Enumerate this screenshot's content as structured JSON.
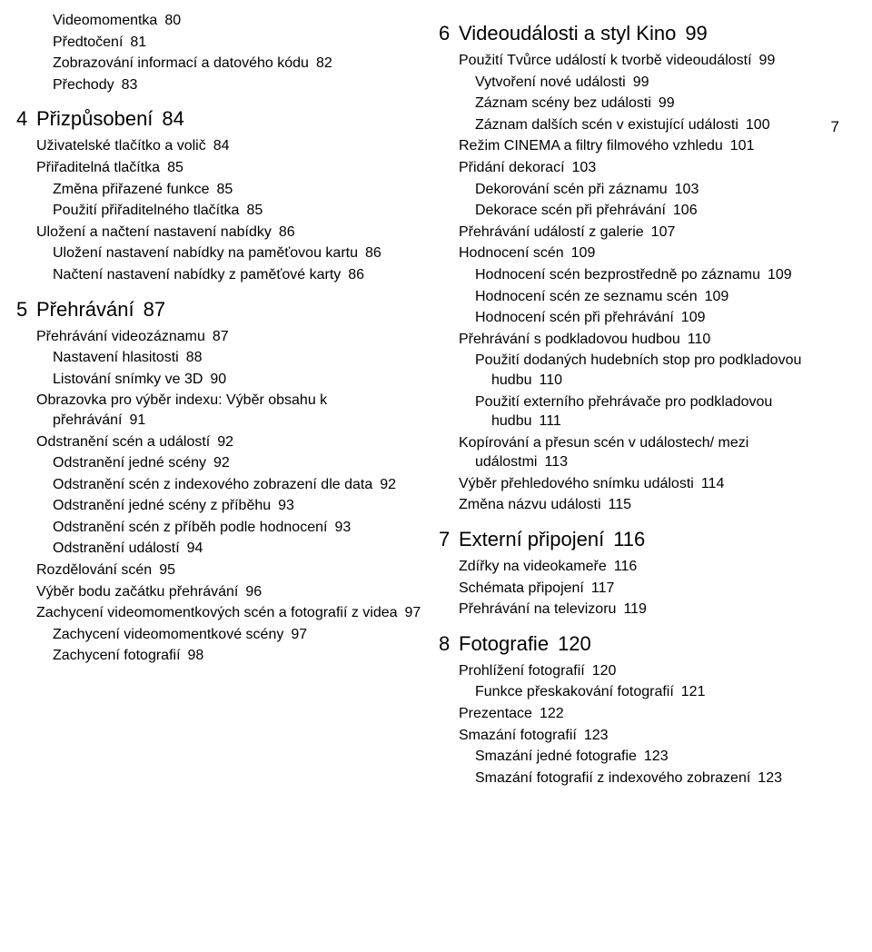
{
  "side_page": "7",
  "left": {
    "top_sub1": [
      {
        "t": "Videomomentka",
        "p": "80"
      },
      {
        "t": "Předtočení",
        "p": "81"
      },
      {
        "t": "Zobrazování informací a datového kódu",
        "p": "82",
        "ind2": true
      },
      {
        "t": "Přechody",
        "p": "83"
      }
    ],
    "ch4": {
      "no": "4",
      "title": "Přizpůsobení",
      "page": "84"
    },
    "ch4_items": [
      {
        "cls": "sec",
        "t": "Uživatelské tlačítko a volič",
        "p": "84"
      },
      {
        "cls": "sec",
        "t": "Přiřaditelná tlačítka",
        "p": "85"
      },
      {
        "cls": "sub1",
        "t": "Změna přiřazené funkce",
        "p": "85"
      },
      {
        "cls": "sub1",
        "t": "Použití přiřaditelného tlačítka",
        "p": "85"
      },
      {
        "cls": "sec",
        "t": "Uložení a načtení nastavení nabídky",
        "p": "86"
      },
      {
        "cls": "sub1",
        "t": "Uložení nastavení nabídky na paměťovou kartu",
        "p": "86",
        "ind2": true
      },
      {
        "cls": "sub1",
        "t": "Načtení nastavení nabídky z paměťové karty",
        "p": "86",
        "ind2": true
      }
    ],
    "ch5": {
      "no": "5",
      "title": "Přehrávání",
      "page": "87"
    },
    "ch5_items": [
      {
        "cls": "sec",
        "t": "Přehrávání videozáznamu",
        "p": "87"
      },
      {
        "cls": "sub1",
        "t": "Nastavení hlasitosti",
        "p": "88"
      },
      {
        "cls": "sub1",
        "t": "Listování snímky ve 3D",
        "p": "90"
      },
      {
        "cls": "sec",
        "t": "Obrazovka pro výběr indexu: Výběr obsahu k přehrávání",
        "p": "91",
        "ind2": true
      },
      {
        "cls": "sec",
        "t": "Odstranění scén a událostí",
        "p": "92"
      },
      {
        "cls": "sub1",
        "t": "Odstranění jedné scény",
        "p": "92"
      },
      {
        "cls": "sub1",
        "t": "Odstranění scén z indexového zobrazení dle data",
        "p": "92",
        "ind2": true
      },
      {
        "cls": "sub1",
        "t": "Odstranění jedné scény z příběhu",
        "p": "93"
      },
      {
        "cls": "sub1",
        "t": "Odstranění scén z příběh podle hodnocení",
        "p": "93",
        "ind2": true
      },
      {
        "cls": "sub1",
        "t": "Odstranění událostí",
        "p": "94"
      },
      {
        "cls": "sec",
        "t": "Rozdělování scén",
        "p": "95"
      },
      {
        "cls": "sec",
        "t": "Výběr bodu začátku přehrávání",
        "p": "96"
      },
      {
        "cls": "sec",
        "t": "Zachycení videomomentkových scén a fotografií z videa",
        "p": "97",
        "ind2": true
      },
      {
        "cls": "sub1",
        "t": "Zachycení videomomentkové scény",
        "p": "97"
      },
      {
        "cls": "sub1",
        "t": "Zachycení fotografií",
        "p": "98"
      }
    ]
  },
  "right": {
    "ch6": {
      "no": "6",
      "title": "Videoudálosti a styl Kino",
      "page": "99"
    },
    "ch6_items": [
      {
        "cls": "sec",
        "t": "Použití Tvůrce událostí k tvorbě videoudálostí",
        "p": "99",
        "ind2": true
      },
      {
        "cls": "sub1",
        "t": "Vytvoření nové události",
        "p": "99"
      },
      {
        "cls": "sub1",
        "t": "Záznam scény bez události",
        "p": "99"
      },
      {
        "cls": "sub1",
        "t": "Záznam dalších scén v existující události",
        "p": "100",
        "ind2": true
      },
      {
        "cls": "sec",
        "t": "Režim CINEMA a filtry filmového vzhledu",
        "p": "101",
        "ind2": true
      },
      {
        "cls": "sec",
        "t": "Přidání dekorací",
        "p": "103"
      },
      {
        "cls": "sub1",
        "t": "Dekorování scén při záznamu",
        "p": "103"
      },
      {
        "cls": "sub1",
        "t": "Dekorace scén při přehrávání",
        "p": "106"
      },
      {
        "cls": "sec",
        "t": "Přehrávání událostí z galerie",
        "p": "107"
      },
      {
        "cls": "sec",
        "t": "Hodnocení scén",
        "p": "109"
      },
      {
        "cls": "sub1",
        "t": "Hodnocení scén bezprostředně po záznamu",
        "p": "109",
        "ind2": true
      },
      {
        "cls": "sub1",
        "t": "Hodnocení scén ze seznamu scén",
        "p": "109"
      },
      {
        "cls": "sub1",
        "t": "Hodnocení scén při přehrávání",
        "p": "109"
      },
      {
        "cls": "sec",
        "t": "Přehrávání s podkladovou hudbou",
        "p": "110"
      },
      {
        "cls": "sub1",
        "t": "Použití dodaných hudebních stop pro podkladovou hudbu",
        "p": "110",
        "ind2": true
      },
      {
        "cls": "sub1",
        "t": "Použití externího přehrávače pro podkladovou hudbu",
        "p": "111",
        "ind2": true
      },
      {
        "cls": "sec",
        "t": "Kopírování a přesun scén v událostech/ mezi událostmi",
        "p": "113",
        "ind2": true
      },
      {
        "cls": "sec",
        "t": "Výběr přehledového snímku události",
        "p": "114"
      },
      {
        "cls": "sec",
        "t": "Změna názvu události",
        "p": "115"
      }
    ],
    "ch7": {
      "no": "7",
      "title": "Externí připojení",
      "page": "116"
    },
    "ch7_items": [
      {
        "cls": "sec",
        "t": "Zdířky na videokameře",
        "p": "116"
      },
      {
        "cls": "sec",
        "t": "Schémata připojení",
        "p": "117"
      },
      {
        "cls": "sec",
        "t": "Přehrávání na televizoru",
        "p": "119"
      }
    ],
    "ch8": {
      "no": "8",
      "title": "Fotografie",
      "page": "120"
    },
    "ch8_items": [
      {
        "cls": "sec",
        "t": "Prohlížení fotografií",
        "p": "120"
      },
      {
        "cls": "sub1",
        "t": "Funkce přeskakování fotografií",
        "p": "121"
      },
      {
        "cls": "sec",
        "t": "Prezentace",
        "p": "122"
      },
      {
        "cls": "sec",
        "t": "Smazání fotografií",
        "p": "123"
      },
      {
        "cls": "sub1",
        "t": "Smazání jedné fotografie",
        "p": "123"
      },
      {
        "cls": "sub1",
        "t": "Smazání fotografií z indexového zobrazení",
        "p": "123",
        "ind2": true
      }
    ]
  }
}
